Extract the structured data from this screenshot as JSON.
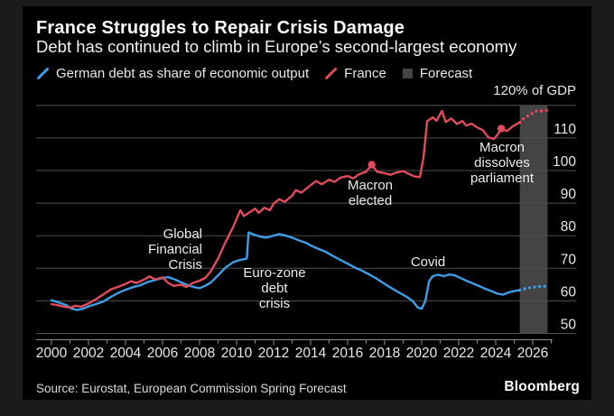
{
  "header": {
    "title": "France Struggles to Repair Crisis Damage",
    "subtitle": "Debt has continued to climb in Europe’s second-largest economy"
  },
  "legend": {
    "germany_label": "German debt as share of economic output",
    "france_label": "France",
    "forecast_label": "Forecast"
  },
  "annotations": {
    "global_financial_crisis": "Global\nFinancial\nCrisis",
    "eurozone_debt_crisis": "Euro-zone\ndebt\ncrisis",
    "macron_elected": "Macron\nelected",
    "macron_dissolves_parliament": "Macron\ndissolves\nparliament",
    "covid": "Covid"
  },
  "source": "Source: Eurostat, European Commission Spring Forecast",
  "brand": "Bloomberg",
  "colors": {
    "background": "#000000",
    "frame": "#1b1b1b",
    "germany_line": "#3e9ee8",
    "france_line": "#e14b5c",
    "forecast_band": "#444444",
    "gridline": "#4f4f4f",
    "axis": "#8e8e8e",
    "text": "#e9e9e9"
  },
  "chart_data": {
    "type": "line",
    "unit_label": "120% of GDP",
    "x_axis": {
      "start": 2000,
      "end": 2027,
      "tick_years": [
        2000,
        2002,
        2004,
        2006,
        2008,
        2010,
        2012,
        2014,
        2016,
        2018,
        2020,
        2022,
        2024,
        2026
      ],
      "minor_tick_years": [
        2001,
        2003,
        2005,
        2007,
        2009,
        2011,
        2013,
        2015,
        2017,
        2019,
        2021,
        2023,
        2025,
        2027
      ]
    },
    "y_axis": {
      "min": 50,
      "max": 120,
      "gridline_values": [
        120,
        110,
        100,
        90,
        80,
        70,
        60,
        50
      ],
      "labeled_values": [
        110,
        100,
        90,
        80,
        70,
        60,
        50
      ]
    },
    "forecast_band": {
      "from_year": 2025.3,
      "to_year": 2026.8
    },
    "series": [
      {
        "name": "Germany",
        "color": "#3e9ee8",
        "solid": [
          [
            2000.0,
            60.2
          ],
          [
            2000.4,
            59.5
          ],
          [
            2000.8,
            58.7
          ],
          [
            2001.1,
            57.6
          ],
          [
            2001.4,
            57.2
          ],
          [
            2001.7,
            57.6
          ],
          [
            2002.0,
            58.3
          ],
          [
            2002.4,
            59.0
          ],
          [
            2002.8,
            59.8
          ],
          [
            2003.2,
            61.2
          ],
          [
            2003.6,
            62.4
          ],
          [
            2004.0,
            63.4
          ],
          [
            2004.4,
            64.2
          ],
          [
            2004.8,
            64.8
          ],
          [
            2005.2,
            65.8
          ],
          [
            2005.6,
            66.4
          ],
          [
            2006.0,
            67.0
          ],
          [
            2006.3,
            67.3
          ],
          [
            2006.6,
            66.7
          ],
          [
            2007.0,
            65.7
          ],
          [
            2007.4,
            64.7
          ],
          [
            2007.8,
            64.1
          ],
          [
            2008.0,
            63.9
          ],
          [
            2008.3,
            64.6
          ],
          [
            2008.6,
            65.6
          ],
          [
            2009.0,
            67.8
          ],
          [
            2009.4,
            70.2
          ],
          [
            2009.8,
            71.8
          ],
          [
            2010.1,
            72.4
          ],
          [
            2010.4,
            72.8
          ],
          [
            2010.55,
            73.0
          ],
          [
            2010.65,
            81.0
          ],
          [
            2011.0,
            80.2
          ],
          [
            2011.3,
            79.7
          ],
          [
            2011.6,
            79.4
          ],
          [
            2012.0,
            80.0
          ],
          [
            2012.3,
            80.5
          ],
          [
            2012.6,
            80.1
          ],
          [
            2013.0,
            79.4
          ],
          [
            2013.4,
            78.5
          ],
          [
            2013.8,
            77.7
          ],
          [
            2014.0,
            77.0
          ],
          [
            2014.4,
            76.0
          ],
          [
            2014.8,
            75.1
          ],
          [
            2015.2,
            73.8
          ],
          [
            2015.6,
            72.6
          ],
          [
            2016.0,
            71.4
          ],
          [
            2016.4,
            70.2
          ],
          [
            2016.8,
            69.2
          ],
          [
            2017.2,
            68.0
          ],
          [
            2017.6,
            66.7
          ],
          [
            2018.0,
            65.2
          ],
          [
            2018.4,
            63.8
          ],
          [
            2018.8,
            62.5
          ],
          [
            2019.2,
            61.2
          ],
          [
            2019.5,
            60.0
          ],
          [
            2019.8,
            57.9
          ],
          [
            2020.0,
            57.6
          ],
          [
            2020.2,
            60.0
          ],
          [
            2020.4,
            66.0
          ],
          [
            2020.6,
            67.6
          ],
          [
            2020.9,
            68.0
          ],
          [
            2021.2,
            67.6
          ],
          [
            2021.5,
            68.1
          ],
          [
            2021.8,
            67.8
          ],
          [
            2022.1,
            67.0
          ],
          [
            2022.4,
            66.2
          ],
          [
            2022.7,
            65.5
          ],
          [
            2023.0,
            64.8
          ],
          [
            2023.4,
            63.8
          ],
          [
            2023.8,
            62.9
          ],
          [
            2024.1,
            62.2
          ],
          [
            2024.4,
            61.9
          ],
          [
            2024.7,
            62.6
          ],
          [
            2025.0,
            63.0
          ],
          [
            2025.3,
            63.3
          ]
        ],
        "forecast": [
          [
            2025.3,
            63.3
          ],
          [
            2025.6,
            63.8
          ],
          [
            2025.9,
            64.1
          ],
          [
            2026.2,
            64.3
          ],
          [
            2026.5,
            64.5
          ],
          [
            2026.8,
            64.5
          ]
        ]
      },
      {
        "name": "France",
        "color": "#e14b5c",
        "solid": [
          [
            2000.0,
            59.0
          ],
          [
            2000.3,
            58.7
          ],
          [
            2000.6,
            58.3
          ],
          [
            2001.0,
            57.9
          ],
          [
            2001.3,
            58.5
          ],
          [
            2001.6,
            58.2
          ],
          [
            2002.0,
            59.2
          ],
          [
            2002.4,
            60.5
          ],
          [
            2002.8,
            62.0
          ],
          [
            2003.2,
            63.5
          ],
          [
            2003.6,
            64.3
          ],
          [
            2004.0,
            65.2
          ],
          [
            2004.3,
            66.0
          ],
          [
            2004.6,
            65.5
          ],
          [
            2005.0,
            66.5
          ],
          [
            2005.3,
            67.5
          ],
          [
            2005.6,
            66.6
          ],
          [
            2006.0,
            67.2
          ],
          [
            2006.3,
            65.5
          ],
          [
            2006.6,
            64.6
          ],
          [
            2007.0,
            65.0
          ],
          [
            2007.3,
            64.2
          ],
          [
            2007.6,
            65.4
          ],
          [
            2008.0,
            66.2
          ],
          [
            2008.3,
            67.0
          ],
          [
            2008.6,
            69.0
          ],
          [
            2009.0,
            73.0
          ],
          [
            2009.4,
            78.0
          ],
          [
            2009.8,
            82.5
          ],
          [
            2010.2,
            87.8
          ],
          [
            2010.4,
            86.0
          ],
          [
            2010.7,
            87.2
          ],
          [
            2011.0,
            88.3
          ],
          [
            2011.2,
            87.0
          ],
          [
            2011.5,
            88.6
          ],
          [
            2011.8,
            87.8
          ],
          [
            2012.0,
            89.8
          ],
          [
            2012.3,
            91.2
          ],
          [
            2012.6,
            90.4
          ],
          [
            2013.0,
            92.3
          ],
          [
            2013.2,
            94.0
          ],
          [
            2013.5,
            93.2
          ],
          [
            2013.8,
            94.6
          ],
          [
            2014.0,
            95.5
          ],
          [
            2014.3,
            96.8
          ],
          [
            2014.6,
            95.8
          ],
          [
            2015.0,
            97.2
          ],
          [
            2015.3,
            96.5
          ],
          [
            2015.6,
            97.8
          ],
          [
            2016.0,
            98.3
          ],
          [
            2016.3,
            97.6
          ],
          [
            2016.6,
            98.8
          ],
          [
            2017.0,
            99.6
          ],
          [
            2017.3,
            101.8
          ],
          [
            2017.6,
            99.6
          ],
          [
            2018.0,
            99.2
          ],
          [
            2018.3,
            98.7
          ],
          [
            2018.6,
            99.3
          ],
          [
            2019.0,
            99.8
          ],
          [
            2019.3,
            99.0
          ],
          [
            2019.6,
            98.2
          ],
          [
            2019.9,
            98.0
          ],
          [
            2020.1,
            104.0
          ],
          [
            2020.3,
            115.2
          ],
          [
            2020.6,
            116.3
          ],
          [
            2020.8,
            115.3
          ],
          [
            2021.1,
            118.3
          ],
          [
            2021.3,
            114.9
          ],
          [
            2021.6,
            116.0
          ],
          [
            2021.9,
            114.3
          ],
          [
            2022.2,
            115.2
          ],
          [
            2022.4,
            113.8
          ],
          [
            2022.7,
            114.4
          ],
          [
            2023.0,
            113.2
          ],
          [
            2023.3,
            112.4
          ],
          [
            2023.6,
            110.2
          ],
          [
            2023.9,
            109.7
          ],
          [
            2024.1,
            111.0
          ],
          [
            2024.3,
            112.9
          ],
          [
            2024.6,
            112.1
          ],
          [
            2024.9,
            113.5
          ],
          [
            2025.3,
            114.8
          ]
        ],
        "forecast": [
          [
            2025.3,
            114.8
          ],
          [
            2025.5,
            115.9
          ],
          [
            2025.8,
            117.0
          ],
          [
            2026.1,
            118.0
          ],
          [
            2026.3,
            118.4
          ],
          [
            2026.5,
            118.3
          ],
          [
            2026.8,
            118.5
          ]
        ],
        "markers": [
          {
            "year": 2017.3,
            "value": 101.8,
            "label": "Macron elected"
          },
          {
            "year": 2024.3,
            "value": 112.9,
            "label": "Macron dissolves parliament"
          }
        ]
      }
    ]
  }
}
